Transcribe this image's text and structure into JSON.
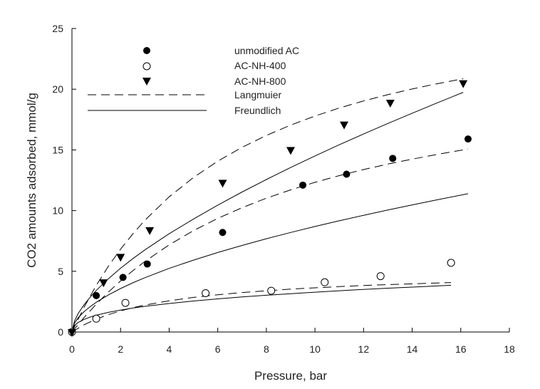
{
  "chart_data": {
    "type": "scatter",
    "xlabel": "Pressure, bar",
    "ylabel": "CO2 amounts adsorbed, mmol/g",
    "xlim": [
      0,
      18
    ],
    "ylim": [
      0,
      25
    ],
    "xticks": [
      0,
      2,
      4,
      6,
      8,
      10,
      12,
      14,
      16,
      18
    ],
    "yticks": [
      0,
      5,
      10,
      15,
      20,
      25
    ],
    "grid": false,
    "legend_position": "top-center",
    "series": [
      {
        "name": "unmodified AC",
        "marker": "filled-circle",
        "color": "#000000",
        "points": [
          [
            0,
            0
          ],
          [
            1.0,
            3.0
          ],
          [
            2.1,
            4.5
          ],
          [
            3.1,
            5.6
          ],
          [
            6.2,
            8.2
          ],
          [
            9.5,
            12.1
          ],
          [
            11.3,
            13.0
          ],
          [
            13.2,
            14.3
          ],
          [
            16.3,
            15.9
          ]
        ]
      },
      {
        "name": "AC-NH-400",
        "marker": "open-circle",
        "color": "#000000",
        "points": [
          [
            0,
            0
          ],
          [
            1.0,
            1.1
          ],
          [
            2.2,
            2.4
          ],
          [
            5.5,
            3.2
          ],
          [
            8.2,
            3.4
          ],
          [
            10.4,
            4.1
          ],
          [
            12.7,
            4.6
          ],
          [
            15.6,
            5.7
          ]
        ]
      },
      {
        "name": "AC-NH-800",
        "marker": "filled-triangle-down",
        "color": "#000000",
        "points": [
          [
            0,
            0
          ],
          [
            1.3,
            4.1
          ],
          [
            2.0,
            6.2
          ],
          [
            3.2,
            8.4
          ],
          [
            6.2,
            12.3
          ],
          [
            9.0,
            15.0
          ],
          [
            11.2,
            17.1
          ],
          [
            13.1,
            18.9
          ],
          [
            16.1,
            20.5
          ]
        ]
      }
    ],
    "fits": [
      {
        "name": "Langmuier",
        "style": "dashed",
        "curves": [
          {
            "of": "unmodified AC",
            "x": [
              0,
              0.5,
              1,
              1.5,
              2,
              2.5,
              3,
              4,
              5,
              6,
              7,
              8,
              9,
              10,
              11,
              12,
              13,
              14,
              15,
              16.3
            ],
            "y": [
              0,
              1.2,
              2.29,
              3.29,
              4.2,
              5.04,
              5.81,
              7.18,
              8.35,
              9.36,
              10.24,
              11.02,
              11.71,
              12.33,
              12.88,
              13.38,
              13.83,
              14.24,
              14.62,
              15.07
            ]
          },
          {
            "of": "AC-NH-400",
            "x": [
              0,
              0.5,
              1,
              1.5,
              2,
              2.5,
              3,
              4,
              5,
              6,
              7,
              8,
              9,
              10,
              11,
              12,
              13,
              14,
              15.6
            ],
            "y": [
              0,
              0.6,
              1.06,
              1.43,
              1.74,
              2.0,
              2.22,
              2.57,
              2.85,
              3.07,
              3.25,
              3.4,
              3.53,
              3.64,
              3.74,
              3.83,
              3.9,
              3.97,
              4.07
            ]
          },
          {
            "of": "AC-NH-800",
            "x": [
              0,
              0.5,
              1,
              1.5,
              2,
              2.5,
              3,
              4,
              5,
              6,
              7,
              8,
              9,
              10,
              11,
              12,
              13,
              14,
              15,
              16.1
            ],
            "y": [
              0,
              2.05,
              3.84,
              5.42,
              6.82,
              8.07,
              9.2,
              11.13,
              12.73,
              14.07,
              15.21,
              16.19,
              17.04,
              17.79,
              18.45,
              19.03,
              19.55,
              20.02,
              20.44,
              20.86
            ]
          }
        ]
      },
      {
        "name": "Freundlich",
        "style": "solid",
        "curves": [
          {
            "of": "unmodified AC",
            "x": [
              0,
              0.1,
              0.25,
              0.5,
              0.75,
              1,
              1.5,
              2,
              2.5,
              3,
              4,
              5,
              6,
              7,
              8,
              9,
              10,
              11,
              12,
              13,
              14,
              15,
              16.3
            ],
            "y": [
              0,
              0.7,
              1.16,
              1.68,
              2.09,
              2.45,
              3.06,
              3.58,
              4.05,
              4.47,
              5.24,
              5.92,
              6.55,
              7.13,
              7.68,
              8.2,
              8.69,
              9.16,
              9.61,
              10.05,
              10.47,
              10.88,
              11.39
            ]
          },
          {
            "of": "AC-NH-400",
            "x": [
              0,
              0.1,
              0.25,
              0.5,
              0.75,
              1,
              1.5,
              2,
              2.5,
              3,
              4,
              5,
              6,
              7,
              8,
              9,
              10,
              11,
              12,
              13,
              14,
              15.6
            ],
            "y": [
              0,
              0.52,
              0.78,
              1.04,
              1.23,
              1.38,
              1.62,
              1.81,
              1.97,
              2.11,
              2.35,
              2.55,
              2.73,
              2.89,
              3.03,
              3.16,
              3.28,
              3.4,
              3.51,
              3.61,
              3.7,
              3.85
            ]
          },
          {
            "of": "AC-NH-800",
            "x": [
              0,
              0.1,
              0.25,
              0.5,
              0.75,
              1,
              1.5,
              2,
              2.5,
              3,
              4,
              5,
              6,
              7,
              8,
              9,
              10,
              11,
              12,
              13,
              14,
              15,
              16.1
            ],
            "y": [
              0,
              0.87,
              1.5,
              2.25,
              2.87,
              3.42,
              4.39,
              5.25,
              6.03,
              6.76,
              8.09,
              9.31,
              10.45,
              11.53,
              12.56,
              13.55,
              14.5,
              15.42,
              16.31,
              17.18,
              18.02,
              18.85,
              19.74
            ]
          }
        ]
      }
    ]
  }
}
